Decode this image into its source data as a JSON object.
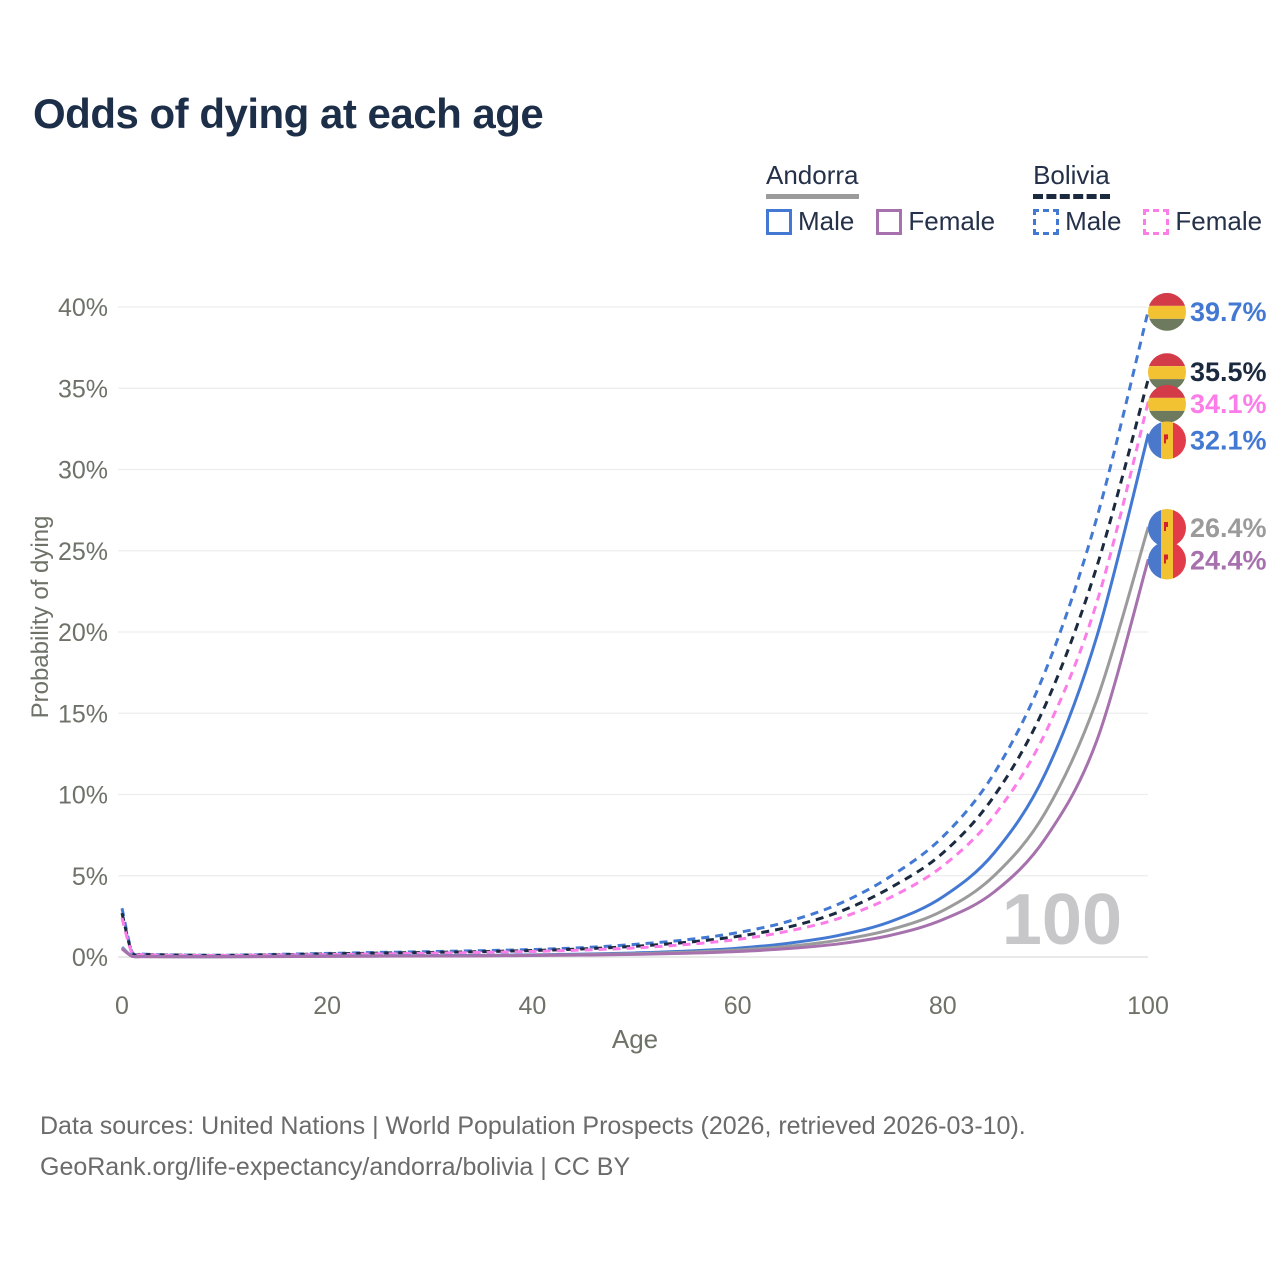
{
  "title": "Odds of dying at each age",
  "legend": {
    "groups": [
      {
        "id": "andorra",
        "label": "Andorra",
        "rule_style": "solid",
        "rule_color": "#9b9b9b",
        "items": [
          {
            "id": "andorra-male",
            "label": "Male",
            "color": "#4379d2",
            "dashed": false
          },
          {
            "id": "andorra-female",
            "label": "Female",
            "color": "#a671ad",
            "dashed": false
          }
        ]
      },
      {
        "id": "bolivia",
        "label": "Bolivia",
        "rule_style": "dashed",
        "rule_color": "#1b2a3f",
        "items": [
          {
            "id": "bolivia-male",
            "label": "Male",
            "color": "#4379d2",
            "dashed": true
          },
          {
            "id": "bolivia-female",
            "label": "Female",
            "color": "#fc7ce8",
            "dashed": true
          }
        ]
      }
    ]
  },
  "chart_data": {
    "type": "line",
    "title": "Odds of dying at each age",
    "xlabel": "Age",
    "ylabel": "Probability of dying",
    "xlim": [
      0,
      100
    ],
    "ylim": [
      0,
      40
    ],
    "x_ticks": [
      0,
      20,
      40,
      60,
      80,
      100
    ],
    "y_ticks": [
      0,
      5,
      10,
      15,
      20,
      25,
      30,
      35,
      40
    ],
    "y_tick_labels": [
      "0%",
      "5%",
      "10%",
      "15%",
      "20%",
      "25%",
      "30%",
      "35%",
      "40%"
    ],
    "grid": true,
    "legend_position": "top-right",
    "watermark": "100",
    "x": [
      0,
      1,
      2,
      5,
      10,
      15,
      20,
      25,
      30,
      35,
      40,
      45,
      50,
      55,
      60,
      65,
      70,
      75,
      80,
      85,
      90,
      95,
      100
    ],
    "series": [
      {
        "id": "bolivia-male",
        "name": "Bolivia Male",
        "color": "#4379d2",
        "dashed": true,
        "flag": "bolivia",
        "end_label": "39.7%",
        "end_value": 39.7,
        "values": [
          3.0,
          0.28,
          0.18,
          0.13,
          0.11,
          0.16,
          0.22,
          0.28,
          0.33,
          0.39,
          0.46,
          0.58,
          0.78,
          1.06,
          1.5,
          2.2,
          3.3,
          5.0,
          7.4,
          11.3,
          17.6,
          27.0,
          39.7
        ]
      },
      {
        "id": "bolivia-both",
        "name": "Bolivia Both sexes",
        "color": "#1b2a3f",
        "dashed": true,
        "flag": "bolivia",
        "end_label": "35.5%",
        "end_value": 35.5,
        "values": [
          2.7,
          0.25,
          0.16,
          0.12,
          0.1,
          0.14,
          0.19,
          0.24,
          0.28,
          0.33,
          0.4,
          0.5,
          0.66,
          0.9,
          1.27,
          1.85,
          2.8,
          4.3,
          6.4,
          9.9,
          15.5,
          24.0,
          35.5
        ]
      },
      {
        "id": "bolivia-female",
        "name": "Bolivia Female",
        "color": "#fc7ce8",
        "dashed": true,
        "flag": "bolivia",
        "end_label": "34.1%",
        "end_value": 34.1,
        "values": [
          2.4,
          0.22,
          0.14,
          0.1,
          0.09,
          0.12,
          0.15,
          0.19,
          0.23,
          0.28,
          0.34,
          0.43,
          0.56,
          0.77,
          1.08,
          1.6,
          2.4,
          3.7,
          5.6,
          8.7,
          13.8,
          21.8,
          34.1
        ]
      },
      {
        "id": "andorra-male",
        "name": "Andorra Male",
        "color": "#4379d2",
        "dashed": false,
        "flag": "andorra",
        "end_label": "32.1%",
        "end_value": 32.1,
        "values": [
          0.6,
          0.05,
          0.03,
          0.02,
          0.02,
          0.04,
          0.06,
          0.07,
          0.08,
          0.1,
          0.13,
          0.18,
          0.25,
          0.36,
          0.54,
          0.85,
          1.35,
          2.2,
          3.7,
          6.4,
          11.3,
          19.7,
          32.1
        ]
      },
      {
        "id": "andorra-both",
        "name": "Andorra Both sexes",
        "color": "#9b9b9b",
        "dashed": false,
        "flag": "andorra",
        "end_label": "26.4%",
        "end_value": 26.4,
        "values": [
          0.55,
          0.04,
          0.025,
          0.018,
          0.016,
          0.03,
          0.05,
          0.06,
          0.07,
          0.08,
          0.11,
          0.15,
          0.2,
          0.29,
          0.43,
          0.66,
          1.05,
          1.7,
          2.85,
          5.0,
          8.9,
          15.8,
          26.4
        ]
      },
      {
        "id": "andorra-female",
        "name": "Andorra Female",
        "color": "#a671ad",
        "dashed": false,
        "flag": "andorra",
        "end_label": "24.4%",
        "end_value": 24.4,
        "values": [
          0.5,
          0.035,
          0.02,
          0.015,
          0.013,
          0.025,
          0.04,
          0.05,
          0.06,
          0.07,
          0.09,
          0.12,
          0.16,
          0.23,
          0.34,
          0.52,
          0.82,
          1.35,
          2.3,
          4.0,
          7.3,
          13.3,
          24.4
        ]
      }
    ],
    "flags": {
      "bolivia": {
        "stripes": "horizontal",
        "colors": [
          "#d23b47",
          "#f2c233",
          "#6d7a5e"
        ]
      },
      "andorra": {
        "stripes": "vertical",
        "colors": [
          "#4a79cc",
          "#f2c233",
          "#e23c4b"
        ],
        "emblem_color": "#cf2330"
      }
    }
  },
  "footer": {
    "line1": "Data sources: United Nations | World Population Prospects (2026, retrieved 2026-03-10).",
    "line2": "GeoRank.org/life-expectancy/andorra/bolivia | CC BY"
  },
  "colors": {
    "title": "#1c2e48",
    "axis_text": "#6e7268",
    "gridline": "#ededee",
    "baseline": "#dcdcde",
    "watermark": "#c7c7ca",
    "legend_text": "#243149"
  }
}
